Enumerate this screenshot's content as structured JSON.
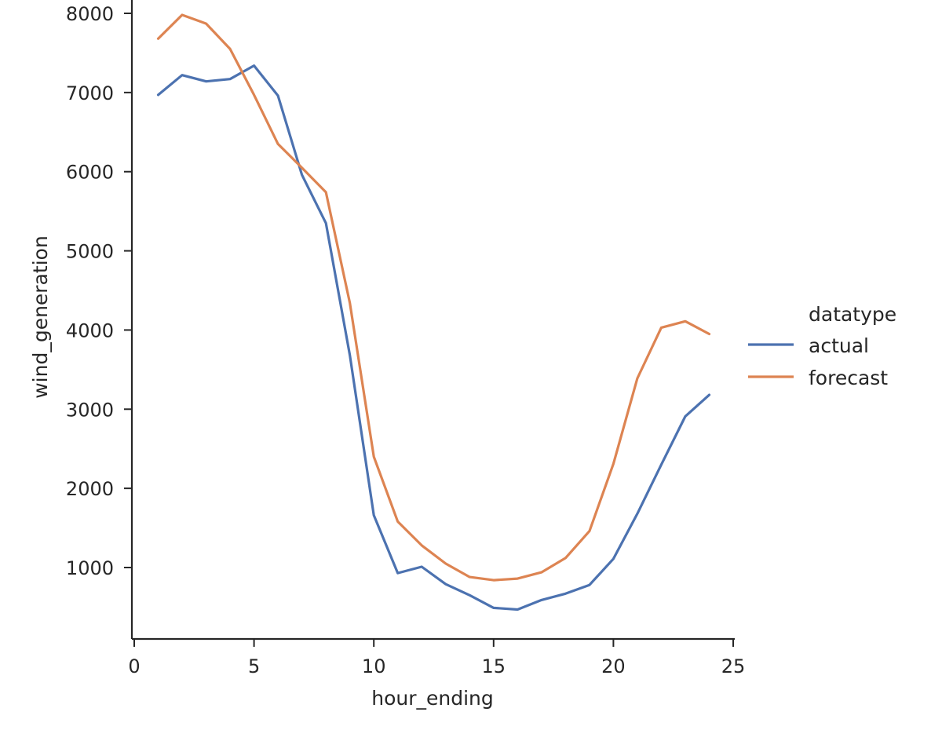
{
  "chart_data": {
    "type": "line",
    "title": "",
    "xlabel": "hour_ending",
    "ylabel": "wind_generation",
    "xlim": [
      0,
      25
    ],
    "ylim": [
      100,
      8300
    ],
    "x_ticks": [
      0,
      5,
      10,
      15,
      20,
      25
    ],
    "y_ticks": [
      1000,
      2000,
      3000,
      4000,
      5000,
      6000,
      7000,
      8000
    ],
    "x_tick_labels": [
      "0",
      "5",
      "10",
      "15",
      "20",
      "25"
    ],
    "y_tick_labels": [
      "1000",
      "2000",
      "3000",
      "4000",
      "5000",
      "6000",
      "7000",
      "8000"
    ],
    "grid": false,
    "legend": {
      "title": "datatype",
      "placement": "right"
    },
    "x": [
      1,
      2,
      3,
      4,
      5,
      6,
      7,
      8,
      9,
      10,
      11,
      12,
      13,
      14,
      15,
      16,
      17,
      18,
      19,
      20,
      21,
      22,
      23,
      24
    ],
    "series": [
      {
        "name": "actual",
        "color": "#4c72b0",
        "values": [
          6970,
          7220,
          7140,
          7170,
          7340,
          6960,
          5960,
          5350,
          3680,
          1660,
          930,
          1010,
          790,
          650,
          490,
          470,
          590,
          670,
          780,
          1110,
          1680,
          2300,
          2910,
          3180
        ]
      },
      {
        "name": "forecast",
        "color": "#dd8452",
        "values": [
          7680,
          7980,
          7870,
          7550,
          6970,
          6350,
          6050,
          5740,
          4340,
          2400,
          1580,
          1280,
          1050,
          880,
          840,
          860,
          940,
          1120,
          1460,
          2310,
          3390,
          4030,
          4110,
          3950
        ]
      }
    ]
  }
}
